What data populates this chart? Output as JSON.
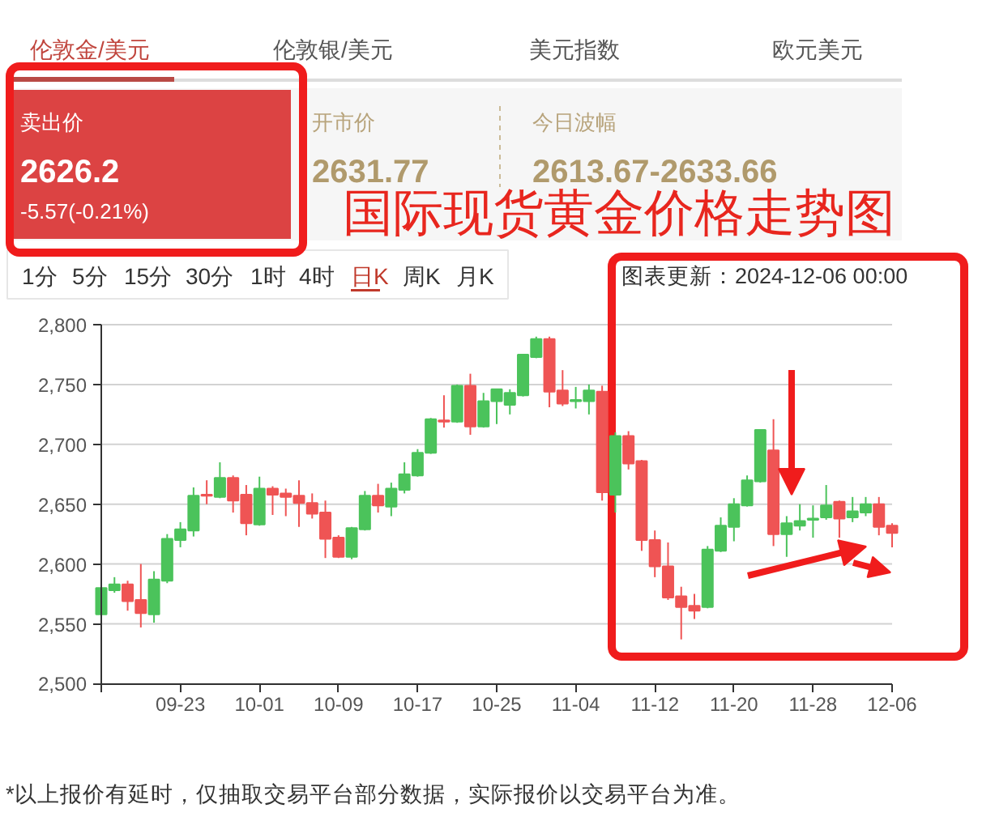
{
  "chart_data": {
    "type": "candlestick",
    "title": "国际现货黄金价格走势图",
    "categories": [
      null,
      null,
      null,
      null,
      null,
      null,
      "09-23",
      null,
      null,
      null,
      null,
      null,
      "10-01",
      null,
      null,
      null,
      null,
      null,
      "10-09",
      null,
      null,
      null,
      null,
      null,
      "10-17",
      null,
      null,
      null,
      null,
      null,
      "10-25",
      null,
      null,
      null,
      null,
      null,
      "11-04",
      null,
      null,
      null,
      null,
      null,
      "11-12",
      null,
      null,
      null,
      null,
      null,
      "11-20",
      null,
      null,
      null,
      null,
      null,
      "11-28",
      null,
      null,
      null,
      null,
      null,
      "12-06"
    ],
    "ohlc": [
      [
        2558,
        2581,
        2557,
        2580
      ],
      [
        2578,
        2589,
        2576,
        2583
      ],
      [
        2583,
        2586,
        2561,
        2569
      ],
      [
        2570,
        2600,
        2547,
        2559
      ],
      [
        2558,
        2594,
        2551,
        2587
      ],
      [
        2586,
        2625,
        2584,
        2621
      ],
      [
        2620,
        2635,
        2614,
        2629
      ],
      [
        2628,
        2664,
        2623,
        2657
      ],
      [
        2658,
        2670,
        2650,
        2657
      ],
      [
        2656,
        2685,
        2655,
        2672
      ],
      [
        2672,
        2674,
        2643,
        2653
      ],
      [
        2658,
        2666,
        2624,
        2634
      ],
      [
        2633,
        2673,
        2632,
        2663
      ],
      [
        2663,
        2665,
        2641,
        2658
      ],
      [
        2659,
        2663,
        2640,
        2656
      ],
      [
        2657,
        2670,
        2631,
        2651
      ],
      [
        2651,
        2659,
        2638,
        2642
      ],
      [
        2643,
        2653,
        2605,
        2621
      ],
      [
        2622,
        2624,
        2605,
        2606
      ],
      [
        2606,
        2631,
        2604,
        2630
      ],
      [
        2629,
        2661,
        2628,
        2657
      ],
      [
        2657,
        2667,
        2643,
        2649
      ],
      [
        2648,
        2668,
        2640,
        2663
      ],
      [
        2662,
        2685,
        2659,
        2675
      ],
      [
        2674,
        2696,
        2673,
        2693
      ],
      [
        2693,
        2722,
        2692,
        2721
      ],
      [
        2720,
        2741,
        2714,
        2719
      ],
      [
        2719,
        2750,
        2718,
        2749
      ],
      [
        2749,
        2759,
        2708,
        2715
      ],
      [
        2715,
        2743,
        2714,
        2736
      ],
      [
        2736,
        2746,
        2717,
        2746
      ],
      [
        2733,
        2746,
        2725,
        2743
      ],
      [
        2741,
        2775,
        2740,
        2775
      ],
      [
        2773,
        2790,
        2772,
        2788
      ],
      [
        2788,
        2790,
        2731,
        2744
      ],
      [
        2745,
        2762,
        2732,
        2734
      ],
      [
        2736,
        2748,
        2730,
        2737
      ],
      [
        2736,
        2750,
        2725,
        2745
      ],
      [
        2744,
        2749,
        2653,
        2660
      ],
      [
        2658,
        2710,
        2643,
        2707
      ],
      [
        2707,
        2711,
        2679,
        2684
      ],
      [
        2686,
        2687,
        2611,
        2620
      ],
      [
        2620,
        2628,
        2589,
        2598
      ],
      [
        2598,
        2618,
        2570,
        2572
      ],
      [
        2573,
        2581,
        2537,
        2564
      ],
      [
        2565,
        2575,
        2554,
        2561
      ],
      [
        2564,
        2615,
        2563,
        2612
      ],
      [
        2611,
        2639,
        2610,
        2632
      ],
      [
        2631,
        2655,
        2619,
        2650
      ],
      [
        2649,
        2674,
        2648,
        2670
      ],
      [
        2669,
        2712,
        2668,
        2712
      ],
      [
        2695,
        2721,
        2615,
        2625
      ],
      [
        2625,
        2640,
        2606,
        2634
      ],
      [
        2632,
        2650,
        2628,
        2636
      ],
      [
        2637,
        2649,
        2622,
        2638
      ],
      [
        2639,
        2666,
        2637,
        2649
      ],
      [
        2652,
        2653,
        2622,
        2638
      ],
      [
        2639,
        2656,
        2635,
        2644
      ],
      [
        2643,
        2656,
        2640,
        2650
      ],
      [
        2650,
        2656,
        2624,
        2631
      ],
      [
        2632,
        2634,
        2614,
        2626
      ]
    ],
    "colors": [
      "#4bc35b",
      "#4bc35b",
      "#ef5454",
      "#ef5454",
      "#4bc35b",
      "#4bc35b",
      "#4bc35b",
      "#4bc35b",
      "#ef5454",
      "#4bc35b",
      "#ef5454",
      "#ef5454",
      "#4bc35b",
      "#ef5454",
      "#ef5454",
      "#ef5454",
      "#ef5454",
      "#ef5454",
      "#ef5454",
      "#4bc35b",
      "#4bc35b",
      "#ef5454",
      "#4bc35b",
      "#4bc35b",
      "#4bc35b",
      "#4bc35b",
      "#ef5454",
      "#4bc35b",
      "#ef5454",
      "#4bc35b",
      "#4bc35b",
      "#4bc35b",
      "#4bc35b",
      "#4bc35b",
      "#ef5454",
      "#ef5454",
      "#4bc35b",
      "#4bc35b",
      "#ef5454",
      "#4bc35b",
      "#ef5454",
      "#ef5454",
      "#ef5454",
      "#ef5454",
      "#ef5454",
      "#ef5454",
      "#4bc35b",
      "#4bc35b",
      "#4bc35b",
      "#4bc35b",
      "#4bc35b",
      "#ef5454",
      "#4bc35b",
      "#4bc35b",
      "#4bc35b",
      "#4bc35b",
      "#ef5454",
      "#4bc35b",
      "#4bc35b",
      "#ef5454",
      "#ef5454"
    ],
    "ylim": [
      2500,
      2800
    ],
    "yticks": [
      {
        "value": 2500,
        "label": "2,500"
      },
      {
        "value": 2550,
        "label": "2,550"
      },
      {
        "value": 2600,
        "label": "2,600"
      },
      {
        "value": 2650,
        "label": "2,650"
      },
      {
        "value": 2700,
        "label": "2,700"
      },
      {
        "value": 2750,
        "label": "2,750"
      },
      {
        "value": 2800,
        "label": "2,800"
      }
    ],
    "grid": "y",
    "annotations": [
      "伦敦金/美元",
      "伦敦银/美元",
      "美元指数",
      "欧元美元",
      "卖出价",
      "2626.2",
      "-5.57(-0.21%)",
      "开市价",
      "2631.77",
      "今日波幅",
      "2613.67-2633.66",
      "1分",
      "5分",
      "15分",
      "30分",
      "1时",
      "4时",
      "日K",
      "周K",
      "月K",
      "图表更新：2024-12-06 00:00",
      "*以上报价有延时，仅抽取交易平台部分数据，实际报价以交易平台为准。"
    ]
  }
}
